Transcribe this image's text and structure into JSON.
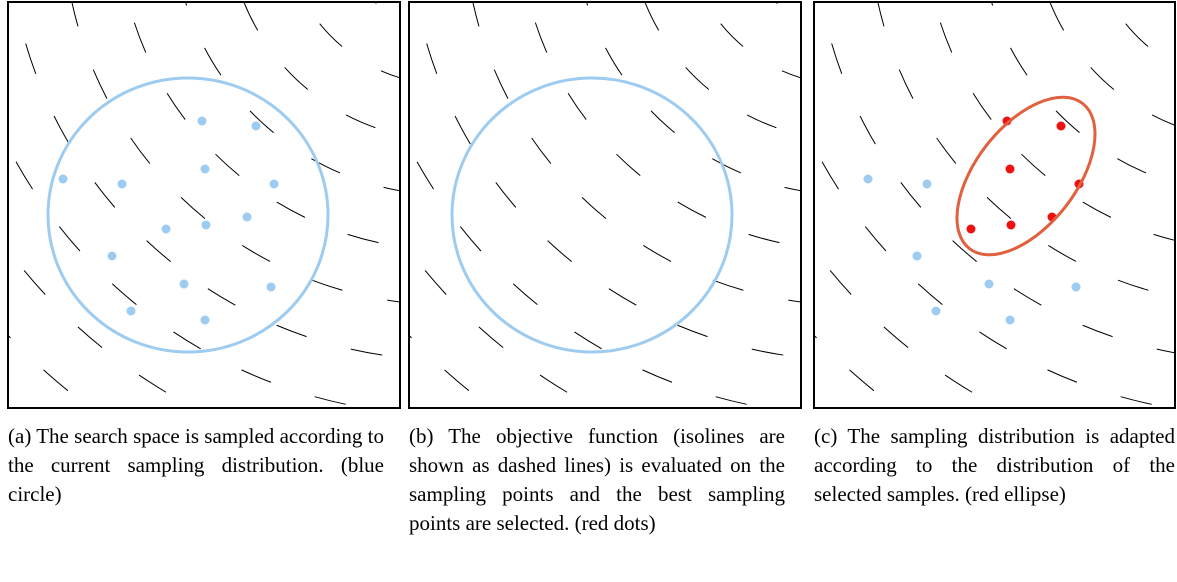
{
  "panels": [
    {
      "caption": "(a) The search space is sampled according to the current sampling distribution. (blue circle)"
    },
    {
      "caption": "(b) The objective function (isolines are shown as dashed lines) is evaluated on the sampling points and the best sampling points are selected. (red dots)"
    },
    {
      "caption": "(c) The sampling distribution is adapted according to the distribution of the selected samples. (red ellipse)"
    }
  ]
}
